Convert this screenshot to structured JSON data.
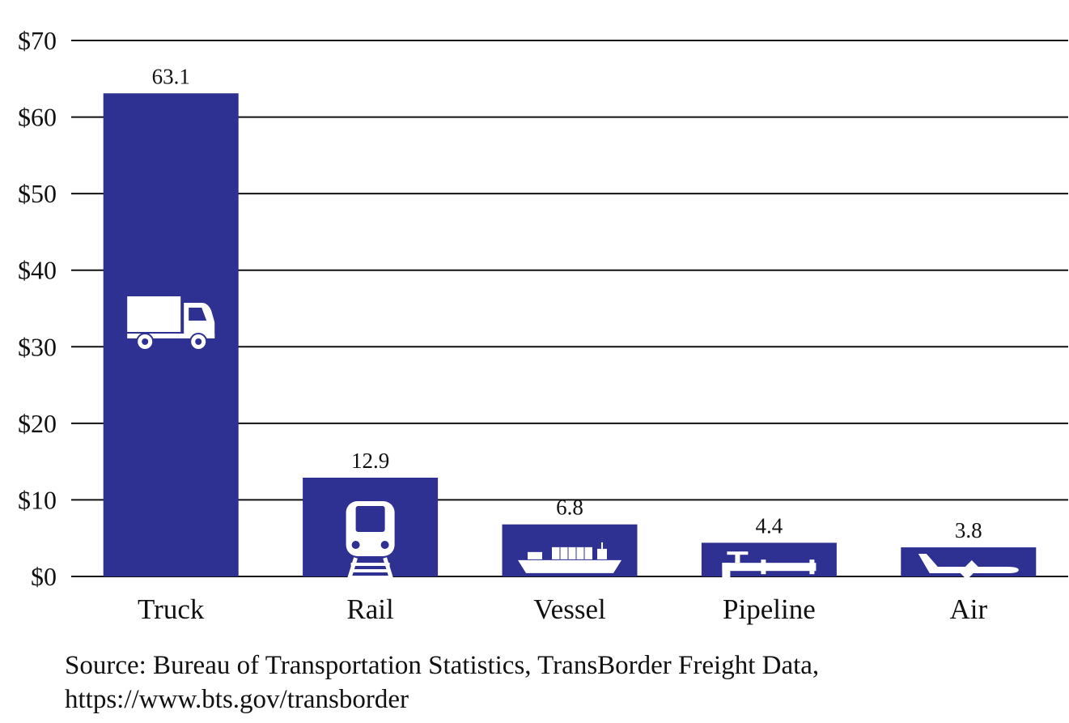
{
  "chart_data": {
    "type": "bar",
    "categories": [
      "Truck",
      "Rail",
      "Vessel",
      "Pipeline",
      "Air"
    ],
    "values": [
      63.1,
      12.9,
      6.8,
      4.4,
      3.8
    ],
    "value_labels": [
      "63.1",
      "12.9",
      "6.8",
      "4.4",
      "3.8"
    ],
    "icons": [
      "truck-icon",
      "train-icon",
      "ship-icon",
      "pipeline-icon",
      "airplane-icon"
    ],
    "ylim": [
      0,
      70
    ],
    "yticks": [
      0,
      10,
      20,
      30,
      40,
      50,
      60,
      70
    ],
    "ytick_labels": [
      "$0",
      "$10",
      "$20",
      "$30",
      "$40",
      "$50",
      "$60",
      "$70"
    ],
    "grid": true,
    "bar_color": "#2e3192",
    "icon_color": "#ffffff"
  },
  "source": {
    "line1": "Source: Bureau of Transportation Statistics, TransBorder Freight Data,",
    "line2": "https://www.bts.gov/transborder"
  }
}
